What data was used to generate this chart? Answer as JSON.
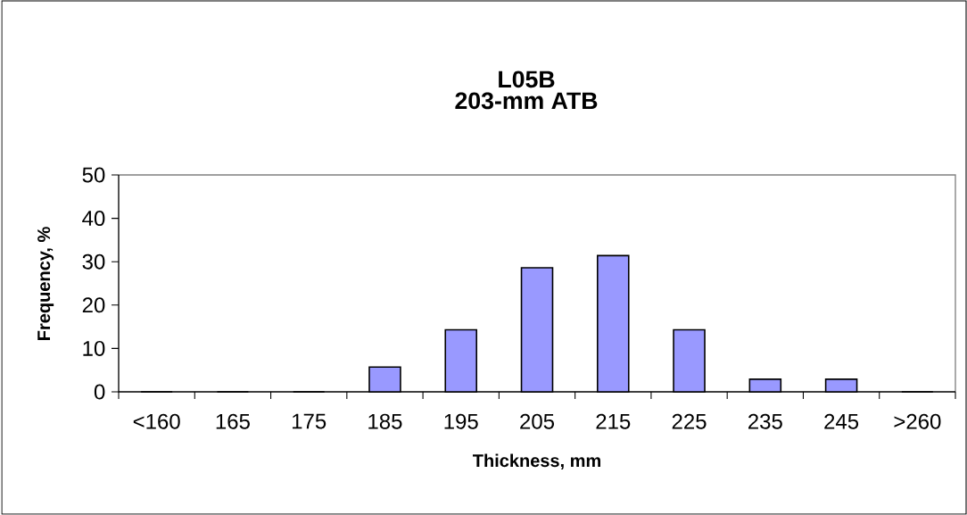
{
  "chart_data": {
    "type": "bar",
    "title": "L05B",
    "subtitle": "203-mm ATB",
    "xlabel": "Thickness, mm",
    "ylabel": "Frequency, %",
    "categories": [
      "<160",
      "165",
      "175",
      "185",
      "195",
      "205",
      "215",
      "225",
      "235",
      "245",
      ">260"
    ],
    "values": [
      0,
      0,
      0,
      5.7,
      14.3,
      28.6,
      31.4,
      14.3,
      2.9,
      2.9,
      0
    ],
    "color": "#9999ff",
    "ylim": [
      0,
      50
    ],
    "yticks": [
      0,
      10,
      20,
      30,
      40,
      50
    ]
  }
}
